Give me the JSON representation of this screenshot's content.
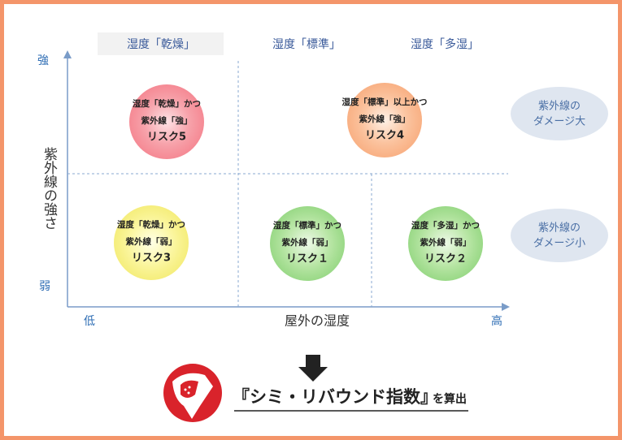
{
  "column_headers": [
    "湿度「乾燥」",
    "湿度「標準」",
    "湿度「多湿」"
  ],
  "y_axis": {
    "high": "強",
    "low": "弱",
    "label": "紫外線の強さ"
  },
  "x_axis": {
    "low": "低",
    "high": "高",
    "label": "屋外の湿度"
  },
  "quadrants": [
    {
      "condition": "湿度「乾燥」かつ",
      "uv": "紫外線「強」",
      "risk": "リスク5"
    },
    {
      "condition": "湿度「標準」以上かつ",
      "uv": "紫外線「強」",
      "risk": "リスク4"
    },
    {
      "condition": "湿度「乾燥」かつ",
      "uv": "紫外線「弱」",
      "risk": "リスク3"
    },
    {
      "condition": "湿度「標準」かつ",
      "uv": "紫外線「弱」",
      "risk": "リスク１"
    },
    {
      "condition": "湿度「多湿」かつ",
      "uv": "紫外線「弱」",
      "risk": "リスク２"
    }
  ],
  "side_labels": [
    [
      "紫外線の",
      "ダメージ大"
    ],
    [
      "紫外線の",
      "ダメージ小"
    ]
  ],
  "result": {
    "index": "『シミ・リバウンド指数』",
    "suffix": "を算出"
  }
}
